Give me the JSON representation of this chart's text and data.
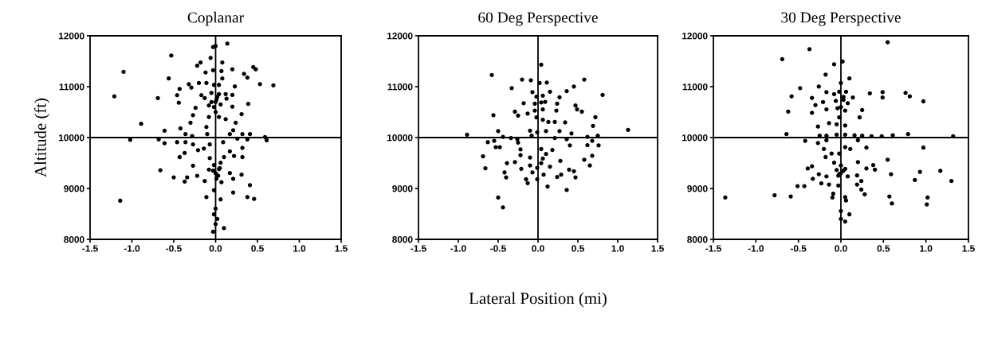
{
  "chart_data": [
    {
      "type": "scatter",
      "title": "Coplanar",
      "ylabel": "Altitude (ft)",
      "marker": "circle",
      "grid": false,
      "xlim": [
        -1.5,
        1.5
      ],
      "xticks": [
        -1.5,
        {
          "value": -1.0,
          "label": "-1.0"
        },
        -0.5,
        {
          "value": 0.0,
          "label": "0.0"
        },
        0.5,
        {
          "value": 1.0,
          "label": "1.0"
        },
        1.5
      ],
      "ylim": [
        8000,
        12000
      ],
      "yticks": [
        8000,
        9000,
        10000,
        11000,
        12000
      ],
      "ref_lines": [
        {
          "axis": "x",
          "value": 0,
          "color": "#000000"
        },
        {
          "axis": "y",
          "value": 10000,
          "color": "#000000"
        }
      ],
      "series": [
        {
          "color": "#000000",
          "x": [
            0.14,
            -0.03,
            0,
            -0.53,
            -1.1,
            -1.21,
            -1.14,
            -0.06,
            -0.18,
            -0.22,
            0.08,
            0.2,
            0.45,
            0.48,
            0.34,
            0.38,
            -0.12,
            -0.03,
            0.07,
            0.08,
            -0.56,
            -0.32,
            -0.2,
            -0.11,
            -0.02,
            0.04,
            0.23,
            0.53,
            0.69,
            -0.29,
            -0.43,
            -0.69,
            -0.46,
            -0.17,
            -0.13,
            -0.05,
            0.04,
            0.12,
            0.2,
            -0.05,
            0.01,
            0.06,
            -0.08,
            0.13,
            -0.44,
            0.2,
            0.39,
            -0.24,
            -0.27,
            0.31,
            -0.08,
            0.04,
            0.12,
            -0.3,
            0.24,
            -0.89,
            -0.61,
            -0.42,
            -0.11,
            -0.1,
            -0.36,
            0.17,
            0.21,
            0.32,
            0.41,
            0.59,
            0.61,
            -1.02,
            -0.68,
            -0.28,
            0.26,
            0.38,
            -0.61,
            -0.46,
            -0.36,
            -0.27,
            -0.07,
            0.09,
            -0.21,
            -0.14,
            0.17,
            0.32,
            -0.37,
            -0.43,
            -0.07,
            0.1,
            0.22,
            0.32,
            -0.27,
            -0.02,
            0.06,
            -0.08,
            0.04,
            0.17,
            -0.66,
            -0.5,
            -0.34,
            -0.22,
            -0.37,
            -0.13,
            0.01,
            0.07,
            0.21,
            0.31,
            0.41,
            -0.02,
            0.21,
            0.38,
            0.46,
            -0.11,
            0.06,
            0,
            -0.02,
            0,
            0.02,
            0.1,
            -0.03,
            0,
            -0.03,
            0.03,
            0,
            -0.02,
            0.02,
            0,
            0.05
          ],
          "values": [
            11845,
            11778,
            11800,
            11611,
            11291,
            10810,
            8758,
            11566,
            11476,
            11413,
            11476,
            11341,
            11386,
            11341,
            11251,
            11179,
            11278,
            11323,
            11305,
            11161,
            11161,
            11049,
            11071,
            11071,
            11035,
            11035,
            11004,
            11049,
            11026,
            10981,
            10954,
            10774,
            10832,
            10832,
            10774,
            10877,
            10855,
            10855,
            10837,
            10697,
            10742,
            10652,
            10630,
            10765,
            10684,
            10607,
            10661,
            10585,
            10441,
            10459,
            10405,
            10405,
            10360,
            10292,
            10292,
            10270,
            10135,
            10180,
            10207,
            10067,
            10067,
            10067,
            10144,
            10067,
            10067,
            10009,
            9946,
            9955,
            9964,
            10031,
            9977,
            9964,
            9887,
            9910,
            9910,
            9865,
            9865,
            9910,
            9752,
            9784,
            9730,
            9797,
            9698,
            9617,
            9595,
            9617,
            9640,
            9617,
            9446,
            9460,
            9505,
            9370,
            9379,
            9302,
            9356,
            9217,
            9217,
            9248,
            9136,
            9145,
            9190,
            9122,
            9190,
            9271,
            9064,
            8965,
            8920,
            8830,
            8794,
            8830,
            8785,
            8605,
            8492,
            8300,
            8400,
            8220,
            8150,
            9300,
            9350,
            9250,
            10700,
            10600,
            10800,
            10500,
            9400
          ]
        }
      ]
    },
    {
      "type": "scatter",
      "title": "60 Deg Perspective",
      "xlabel": "Lateral Position (mi)",
      "marker": "circle",
      "grid": false,
      "xlim": [
        -1.5,
        1.5
      ],
      "xticks": [
        -1.5,
        {
          "value": -1.0,
          "label": "-1.0"
        },
        -0.5,
        {
          "value": 0.0,
          "label": "0.0"
        },
        0.5,
        {
          "value": 1.0,
          "label": "1.0"
        },
        1.5
      ],
      "ylim": [
        8000,
        12000
      ],
      "yticks": [
        8000,
        9000,
        10000,
        11000,
        12000
      ],
      "ref_lines": [
        {
          "axis": "x",
          "value": 0,
          "color": "#000000"
        },
        {
          "axis": "y",
          "value": 10000,
          "color": "#000000"
        }
      ],
      "series": [
        {
          "color": "#000000",
          "x": [
            0.04,
            -0.58,
            -0.2,
            -0.09,
            0.02,
            0.11,
            0.58,
            -0.33,
            0.15,
            0.36,
            0.45,
            0.81,
            -0.07,
            -0.02,
            0.06,
            0.27,
            -0.18,
            -0.04,
            0.04,
            0.09,
            0.24,
            0.47,
            0.49,
            0.55,
            0.23,
            -0.04,
            0.06,
            -0.29,
            -0.25,
            -0.56,
            -0.13,
            -0.02,
            0.06,
            0.13,
            0.21,
            0.34,
            0.69,
            -0.5,
            -0.1,
            -0.01,
            0.1,
            0.27,
            0.42,
            -0.89,
            -0.44,
            -0.34,
            -0.26,
            -0.08,
            0.21,
            0.36,
            0.62,
            0.75,
            -0.63,
            -0.55,
            -0.25,
            0.68,
            -0.53,
            -0.48,
            0.04,
            0.18,
            0.4,
            0.76,
            -0.22,
            -0.69,
            -0.39,
            -0.29,
            -0.22,
            -0.1,
            0.1,
            0.06,
            0.68,
            0.58,
            0.28,
            -0.66,
            -0.42,
            -0.4,
            -0.21,
            -0.1,
            -0.01,
            0.04,
            0.15,
            -0.07,
            0.07,
            -0.01,
            -0.15,
            -0.13,
            0.12,
            0.24,
            0.29,
            0.39,
            0.45,
            0.47,
            0.65,
            0.36,
            -0.5,
            -0.44,
            1.13,
            0.72,
            0.62
          ],
          "values": [
            11431,
            11229,
            11139,
            11125,
            11071,
            11080,
            11139,
            10972,
            10900,
            10913,
            11003,
            10837,
            10891,
            10801,
            10823,
            10792,
            10675,
            10666,
            10688,
            10702,
            10666,
            10630,
            10553,
            10508,
            10531,
            10531,
            10553,
            10508,
            10432,
            10441,
            10472,
            10396,
            10351,
            10306,
            10306,
            10297,
            10229,
            10126,
            10135,
            10103,
            10126,
            10126,
            10081,
            10058,
            10013,
            9991,
            9968,
            10036,
            9991,
            9968,
            10013,
            10036,
            9910,
            9937,
            9901,
            9937,
            9811,
            9811,
            9775,
            9757,
            9847,
            9847,
            9766,
            9631,
            9496,
            9518,
            9653,
            9608,
            9676,
            9586,
            9644,
            9563,
            9541,
            9397,
            9316,
            9217,
            9383,
            9451,
            9406,
            9496,
            9429,
            9316,
            9271,
            9181,
            9181,
            9105,
            9037,
            9226,
            9271,
            9370,
            9338,
            9217,
            9451,
            8969,
            8821,
            8627,
            10150,
            10400,
            9850
          ]
        }
      ]
    },
    {
      "type": "scatter",
      "title": "30 Deg Perspective",
      "marker": "circle",
      "grid": false,
      "xlim": [
        -1.5,
        1.5
      ],
      "xticks": [
        -1.5,
        {
          "value": -1.0,
          "label": "-1.0"
        },
        -0.5,
        {
          "value": 0.0,
          "label": "0.0"
        },
        0.5,
        {
          "value": 1.0,
          "label": "1.0"
        },
        1.5
      ],
      "ylim": [
        8000,
        12000
      ],
      "yticks": [
        8000,
        9000,
        10000,
        11000,
        12000
      ],
      "ref_lines": [
        {
          "axis": "x",
          "value": 0,
          "color": "#000000"
        },
        {
          "axis": "y",
          "value": 10000,
          "color": "#000000"
        }
      ],
      "series": [
        {
          "color": "#000000",
          "x": [
            0.55,
            -0.37,
            -0.69,
            -0.08,
            0.02,
            -0.18,
            0.1,
            0,
            -0.48,
            -0.26,
            0.34,
            0.49,
            0.49,
            0.76,
            0.81,
            0.97,
            -0.58,
            -0.34,
            -0.17,
            -0.08,
            -0.02,
            0.06,
            0.14,
            -0.06,
            0.03,
            0.08,
            -0.3,
            -0.21,
            -0.17,
            -0.04,
            0.05,
            -0.62,
            -0.34,
            0.25,
            0.22,
            -0.14,
            -0.05,
            0.05,
            -0.27,
            -0.02,
            -0.64,
            -0.25,
            -0.17,
            -0.05,
            0.05,
            0.16,
            0.25,
            0.36,
            0.48,
            0.61,
            0.79,
            1.32,
            -0.42,
            -0.27,
            -0.17,
            0.05,
            0.2,
            0.3,
            0.97,
            -0.2,
            -0.11,
            0.11,
            -0.02,
            -0.18,
            0.2,
            0.38,
            0.55,
            -0.08,
            0,
            0.05,
            -0.05,
            0.3,
            0.4,
            -0.39,
            -0.34,
            -0.26,
            -0.17,
            -0.02,
            0.08,
            0.19,
            0.59,
            0.93,
            1.17,
            0.87,
            1.3,
            -0.33,
            -0.23,
            -0.14,
            0.24,
            0.19,
            -0.51,
            -0.43,
            -0.03,
            0.24,
            0.28,
            -0.09,
            -0.1,
            0.05,
            0.06,
            -0.78,
            -0.59,
            -1.36,
            0.57,
            0.6,
            1.02,
            1.01,
            0,
            0.1,
            0,
            0.05,
            0,
            0.03,
            -0.03,
            0,
            0.03
          ],
          "values": [
            11872,
            11737,
            11539,
            11440,
            11494,
            11237,
            11161,
            11071,
            10972,
            11003,
            10868,
            10891,
            10787,
            10877,
            10810,
            10711,
            10810,
            10778,
            10891,
            10855,
            10900,
            10900,
            10787,
            10720,
            10742,
            10675,
            10639,
            10697,
            10553,
            10576,
            10531,
            10508,
            10486,
            10540,
            10396,
            10283,
            10261,
            10238,
            10216,
            10396,
            10067,
            10036,
            10036,
            10058,
            10058,
            10045,
            10036,
            10027,
            10027,
            10045,
            10067,
            10027,
            9937,
            9892,
            9946,
            9811,
            9946,
            9802,
            9802,
            9775,
            9685,
            9775,
            9685,
            9617,
            9518,
            9460,
            9563,
            9505,
            9451,
            9383,
            9361,
            9392,
            9370,
            9392,
            9437,
            9280,
            9235,
            9280,
            9235,
            9257,
            9280,
            9325,
            9347,
            9167,
            9145,
            9190,
            9100,
            9077,
            9145,
            9077,
            9046,
            9046,
            9055,
            8978,
            8884,
            8897,
            8821,
            8830,
            8762,
            8866,
            8843,
            8821,
            8843,
            8704,
            8821,
            8686,
            8555,
            8492,
            8400,
            8350,
            9300,
            9350,
            9250,
            10600,
            10800
          ]
        }
      ]
    }
  ]
}
